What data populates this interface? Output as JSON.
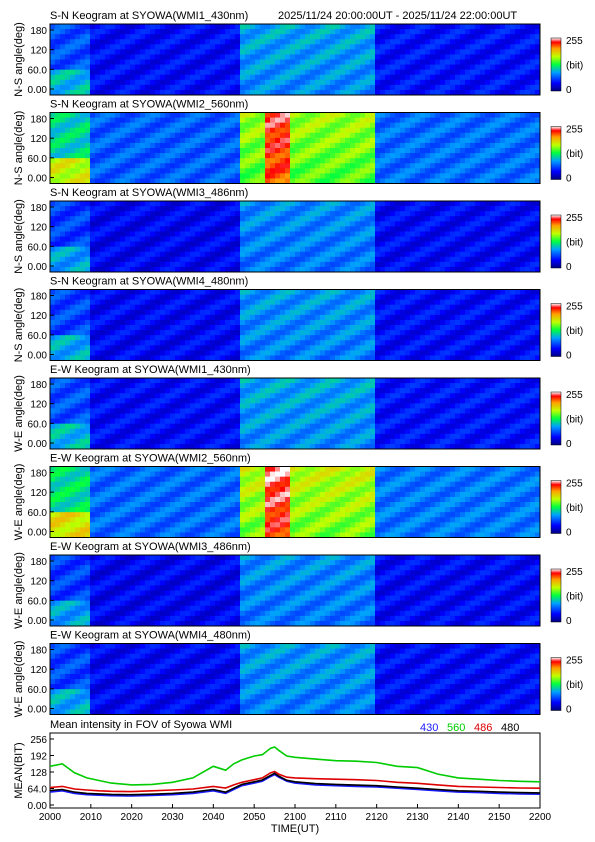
{
  "header_range": "2025/11/24 20:00:00UT - 2025/11/24 22:00:00UT",
  "colors": {
    "c430": "#1a1aff",
    "c560": "#00cc00",
    "c486": "#dd0000",
    "c480": "#000000"
  },
  "keograms": [
    {
      "title": "S-N Keogram at SYOWA(WMI1_430nm)",
      "ylabel": "N-S angle(deg)",
      "yticks": [
        "180",
        "120",
        "60.0",
        "0.00"
      ],
      "cb_max": "255",
      "cb_unit": "(bit)",
      "cb_min": "0",
      "intensity": 0.55
    },
    {
      "title": "S-N Keogram at SYOWA(WMI2_560nm)",
      "ylabel": "N-S angle(deg)",
      "yticks": [
        "180",
        "120",
        "60.0",
        "0.00"
      ],
      "cb_max": "255",
      "cb_unit": "(bit)",
      "cb_min": "0",
      "intensity": 0.95
    },
    {
      "title": "S-N Keogram at SYOWA(WMI3_486nm)",
      "ylabel": "N-S angle(deg)",
      "yticks": [
        "180",
        "120",
        "60.0",
        "0.00"
      ],
      "cb_max": "255",
      "cb_unit": "(bit)",
      "cb_min": "0",
      "intensity": 0.5
    },
    {
      "title": "S-N Keogram at SYOWA(WMI4_480nm)",
      "ylabel": "N-S angle(deg)",
      "yticks": [
        "180",
        "120",
        "60.0",
        "0.00"
      ],
      "cb_max": "255",
      "cb_unit": "(bit)",
      "cb_min": "0",
      "intensity": 0.52
    },
    {
      "title": "E-W Keogram at SYOWA(WMI1_430nm)",
      "ylabel": "W-E angle(deg)",
      "yticks": [
        "180",
        "120",
        "60.0",
        "0.00"
      ],
      "cb_max": "255",
      "cb_unit": "(bit)",
      "cb_min": "0",
      "intensity": 0.55
    },
    {
      "title": "E-W Keogram at SYOWA(WMI2_560nm)",
      "ylabel": "W-E angle(deg)",
      "yticks": [
        "180",
        "120",
        "60.0",
        "0.00"
      ],
      "cb_max": "255",
      "cb_unit": "(bit)",
      "cb_min": "0",
      "intensity": 1.0
    },
    {
      "title": "E-W Keogram at SYOWA(WMI3_486nm)",
      "ylabel": "W-E angle(deg)",
      "yticks": [
        "180",
        "120",
        "60.0",
        "0.00"
      ],
      "cb_max": "255",
      "cb_unit": "(bit)",
      "cb_min": "0",
      "intensity": 0.5
    },
    {
      "title": "E-W Keogram at SYOWA(WMI4_480nm)",
      "ylabel": "W-E angle(deg)",
      "yticks": [
        "180",
        "120",
        "60.0",
        "0.00"
      ],
      "cb_max": "255",
      "cb_unit": "(bit)",
      "cb_min": "0",
      "intensity": 0.52
    }
  ],
  "chart_data": {
    "type": "line",
    "title": "Mean intensity in FOV of Syowa WMI",
    "xlabel": "TIME(UT)",
    "ylabel": "MEAN(BIT)",
    "xticks": [
      "2000",
      "2010",
      "2020",
      "2030",
      "2040",
      "2050",
      "2100",
      "2110",
      "2120",
      "2130",
      "2140",
      "2150",
      "2200"
    ],
    "yticks": [
      "256",
      "192",
      "128",
      "64.0",
      "0.00"
    ],
    "ylim": [
      0,
      256
    ],
    "series": [
      {
        "name": "430",
        "color": "#1a1aff",
        "x": [
          0,
          3,
          6,
          9,
          12,
          15,
          20,
          25,
          30,
          35,
          40,
          43,
          45,
          47,
          50,
          52,
          54,
          55,
          56,
          58,
          60,
          65,
          70,
          75,
          80,
          85,
          90,
          95,
          100,
          105,
          110,
          115,
          120
        ],
        "y": [
          50,
          55,
          45,
          40,
          38,
          36,
          35,
          37,
          40,
          45,
          55,
          45,
          60,
          75,
          85,
          92,
          110,
          118,
          108,
          92,
          85,
          78,
          75,
          72,
          70,
          65,
          60,
          55,
          50,
          48,
          45,
          43,
          42
        ]
      },
      {
        "name": "560",
        "color": "#00cc00",
        "x": [
          0,
          3,
          6,
          9,
          12,
          15,
          20,
          25,
          30,
          35,
          40,
          43,
          45,
          47,
          50,
          52,
          54,
          55,
          56,
          58,
          60,
          65,
          70,
          75,
          80,
          85,
          90,
          95,
          100,
          105,
          110,
          115,
          120
        ],
        "y": [
          150,
          160,
          125,
          105,
          95,
          85,
          78,
          80,
          88,
          105,
          150,
          135,
          160,
          175,
          190,
          195,
          220,
          225,
          212,
          190,
          185,
          178,
          172,
          170,
          165,
          150,
          145,
          120,
          105,
          100,
          95,
          92,
          90
        ]
      },
      {
        "name": "486",
        "color": "#dd0000",
        "x": [
          0,
          3,
          6,
          9,
          12,
          15,
          20,
          25,
          30,
          35,
          40,
          43,
          45,
          47,
          50,
          52,
          54,
          55,
          56,
          58,
          60,
          65,
          70,
          75,
          80,
          85,
          90,
          95,
          100,
          105,
          110,
          115,
          120
        ],
        "y": [
          68,
          72,
          62,
          58,
          55,
          53,
          52,
          55,
          58,
          62,
          72,
          66,
          78,
          88,
          98,
          105,
          125,
          130,
          120,
          108,
          105,
          102,
          100,
          98,
          95,
          88,
          84,
          78,
          72,
          70,
          68,
          66,
          65
        ]
      },
      {
        "name": "480",
        "color": "#000000",
        "x": [
          0,
          3,
          6,
          9,
          12,
          15,
          20,
          25,
          30,
          35,
          40,
          43,
          45,
          47,
          50,
          52,
          54,
          55,
          56,
          58,
          60,
          65,
          70,
          75,
          80,
          85,
          90,
          95,
          100,
          105,
          110,
          115,
          120
        ],
        "y": [
          56,
          60,
          50,
          45,
          43,
          41,
          40,
          42,
          45,
          50,
          60,
          50,
          65,
          80,
          90,
          97,
          115,
          123,
          112,
          96,
          90,
          83,
          80,
          77,
          75,
          70,
          65,
          60,
          55,
          53,
          50,
          48,
          47
        ]
      }
    ]
  }
}
